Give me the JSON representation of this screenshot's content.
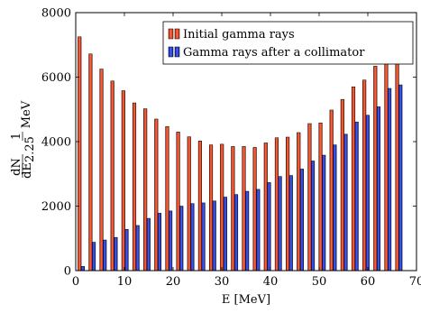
{
  "chart_data": {
    "type": "bar",
    "xlabel": "E [MeV]",
    "ylabel": "dN/dE 2.25 1/MeV",
    "ylabel_parts": {
      "num": "dN",
      "den": "dE",
      "sub": "2.25",
      "frac_num": "1",
      "unit": "MeV"
    },
    "xlim": [
      0,
      70
    ],
    "ylim": [
      0,
      8000
    ],
    "xticks": [
      0,
      10,
      20,
      30,
      40,
      50,
      60,
      70
    ],
    "yticks": [
      0,
      2000,
      4000,
      6000,
      8000
    ],
    "legend_position": "top-right",
    "grid": false,
    "x": [
      1.125,
      3.375,
      5.625,
      7.875,
      10.125,
      12.375,
      14.625,
      16.875,
      19.125,
      21.375,
      23.625,
      25.875,
      28.125,
      30.375,
      32.625,
      34.875,
      37.125,
      39.375,
      41.625,
      43.875,
      46.125,
      48.375,
      50.625,
      52.875,
      55.125,
      57.375,
      59.625,
      61.875,
      64.125,
      66.375
    ],
    "series": [
      {
        "name": "Initial gamma rays",
        "color": "#e8401c",
        "values": [
          7250,
          6720,
          6250,
          5880,
          5580,
          5200,
          5020,
          4700,
          4470,
          4300,
          4150,
          4020,
          3900,
          3920,
          3850,
          3850,
          3820,
          3960,
          4120,
          4140,
          4280,
          4560,
          4580,
          4980,
          5310,
          5700,
          5910,
          6340,
          6500,
          6650
        ]
      },
      {
        "name": "Gamma rays after a collimator",
        "color": "#1f3fcc",
        "values": [
          130,
          880,
          950,
          1030,
          1280,
          1400,
          1620,
          1780,
          1850,
          2000,
          2080,
          2100,
          2160,
          2280,
          2360,
          2460,
          2520,
          2730,
          2920,
          2950,
          3150,
          3400,
          3580,
          3900,
          4230,
          4610,
          4820,
          5080,
          5650,
          5760
        ]
      }
    ]
  }
}
